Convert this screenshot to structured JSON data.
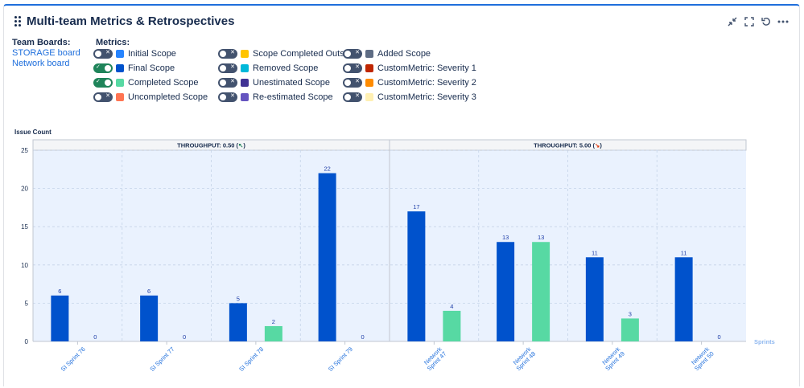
{
  "header": {
    "title": "Multi-team Metrics & Retrospectives",
    "icons": [
      "collapse-icon",
      "fullscreen-icon",
      "refresh-icon",
      "more-icon"
    ]
  },
  "boards": {
    "title": "Team Boards:",
    "items": [
      "STORAGE board",
      "Network board"
    ]
  },
  "metrics": {
    "title": "Metrics:",
    "items": [
      {
        "label": "Initial Scope",
        "color": "#2684ff",
        "on": false
      },
      {
        "label": "Final Scope",
        "color": "#0052cc",
        "on": true
      },
      {
        "label": "Completed Scope",
        "color": "#57d9a3",
        "on": true
      },
      {
        "label": "Uncompleted Scope",
        "color": "#ff7452",
        "on": false
      },
      {
        "label": "Scope Completed Outside",
        "color": "#ffc400",
        "on": false
      },
      {
        "label": "Removed Scope",
        "color": "#00b8d9",
        "on": false
      },
      {
        "label": "Unestimated Scope",
        "color": "#403294",
        "on": false
      },
      {
        "label": "Re-estimated Scope",
        "color": "#6554c0",
        "on": false
      },
      {
        "label": "Added Scope",
        "color": "#5e6c84",
        "on": false
      },
      {
        "label": "CustomMetric: Severity 1",
        "color": "#bf2600",
        "on": false
      },
      {
        "label": "CustomMetric: Severity 2",
        "color": "#ff8b00",
        "on": false
      },
      {
        "label": "CustomMetric: Severity 3",
        "color": "#fff0b3",
        "on": false
      }
    ]
  },
  "chart_data": {
    "type": "bar",
    "ylabel": "Issue Count",
    "xlabel": "Sprints",
    "ylim": [
      0,
      25
    ],
    "yticks": [
      0,
      5,
      10,
      15,
      20,
      25
    ],
    "grid": true,
    "groups": [
      {
        "label": "THROUGHPUT: 0.50",
        "arrow": "↖",
        "arrow_color": "#1f845a",
        "span": 4
      },
      {
        "label": "THROUGHPUT: 5.00",
        "arrow": "↘",
        "arrow_color": "#de350b",
        "span": 4
      }
    ],
    "categories": [
      [
        "SI Sprint 76"
      ],
      [
        "SI Sprint 77"
      ],
      [
        "SI Sprint 78"
      ],
      [
        "SI Sprint 79"
      ],
      [
        "Network",
        "Sprint 47"
      ],
      [
        "Network",
        "Sprint 48"
      ],
      [
        "Network",
        "Sprint 49"
      ],
      [
        "Network",
        "Sprint 50"
      ]
    ],
    "series": [
      {
        "name": "Final Scope",
        "color": "#0052cc",
        "values": [
          6,
          6,
          5,
          22,
          17,
          13,
          11,
          11
        ]
      },
      {
        "name": "Completed Scope",
        "color": "#57d9a3",
        "values": [
          0,
          0,
          2,
          0,
          4,
          13,
          3,
          0
        ]
      }
    ]
  }
}
